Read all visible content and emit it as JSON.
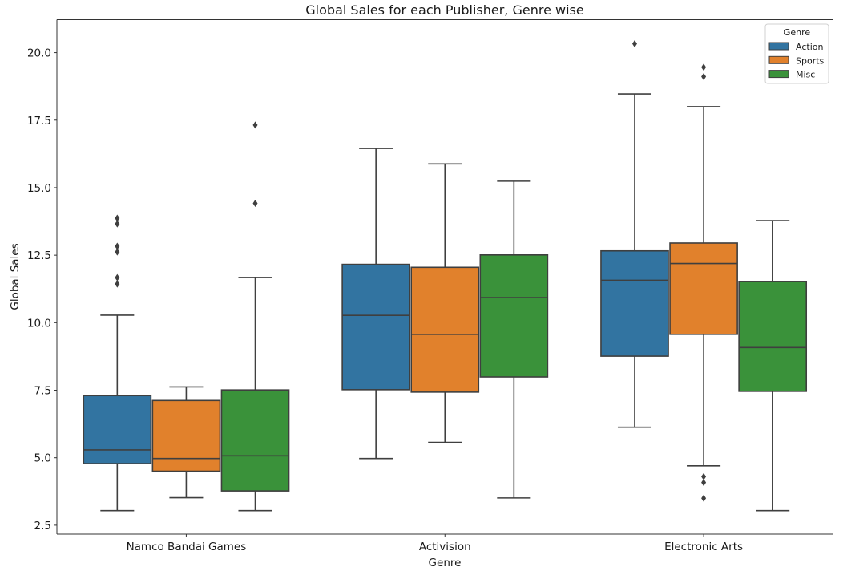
{
  "chart_data": {
    "type": "boxplot",
    "title": "Global Sales for each Publisher, Genre wise",
    "xlabel": "Genre",
    "ylabel": "Global Sales",
    "ylim": [
      2.17,
      21.22
    ],
    "yticks": [
      2.5,
      5.0,
      7.5,
      10.0,
      12.5,
      15.0,
      17.5,
      20.0
    ],
    "ytick_labels": [
      "2.5",
      "5.0",
      "7.5",
      "10.0",
      "12.5",
      "15.0",
      "17.5",
      "20.0"
    ],
    "categories": [
      "Namco Bandai Games",
      "Activision",
      "Electronic Arts"
    ],
    "grid": false,
    "legend": {
      "title": "Genre",
      "placement": "top-right",
      "entries": [
        "Action",
        "Sports",
        "Misc"
      ]
    },
    "series": [
      {
        "name": "Action",
        "color": "#3274a1",
        "boxes": [
          {
            "whislo": 3.04,
            "q1": 4.78,
            "med": 5.29,
            "q3": 7.3,
            "whishi": 10.28,
            "fliers": [
              13.87,
              13.66,
              12.83,
              12.62,
              11.67,
              11.43
            ]
          },
          {
            "whislo": 4.97,
            "q1": 7.52,
            "med": 10.27,
            "q3": 12.16,
            "whishi": 16.45,
            "fliers": []
          },
          {
            "whislo": 6.13,
            "q1": 8.76,
            "med": 11.57,
            "q3": 12.66,
            "whishi": 18.47,
            "fliers": [
              20.33
            ]
          }
        ]
      },
      {
        "name": "Sports",
        "color": "#e1812c",
        "boxes": [
          {
            "whislo": 3.52,
            "q1": 4.5,
            "med": 4.97,
            "q3": 7.12,
            "whishi": 7.62,
            "fliers": []
          },
          {
            "whislo": 5.57,
            "q1": 7.43,
            "med": 9.57,
            "q3": 12.05,
            "whishi": 15.88,
            "fliers": []
          },
          {
            "whislo": 4.7,
            "q1": 9.57,
            "med": 12.19,
            "q3": 12.95,
            "whishi": 18.0,
            "fliers": [
              19.46,
              19.11,
              4.3,
              4.08,
              3.5
            ]
          }
        ]
      },
      {
        "name": "Misc",
        "color": "#3a923a",
        "boxes": [
          {
            "whislo": 3.04,
            "q1": 3.77,
            "med": 5.07,
            "q3": 7.51,
            "whishi": 11.67,
            "fliers": [
              17.32,
              14.42
            ]
          },
          {
            "whislo": 3.51,
            "q1": 7.99,
            "med": 10.93,
            "q3": 12.51,
            "whishi": 15.24,
            "fliers": []
          },
          {
            "whislo": 3.04,
            "q1": 7.46,
            "med": 9.08,
            "q3": 11.52,
            "whishi": 13.78,
            "fliers": []
          }
        ]
      }
    ],
    "line_color": "#3f3f3f"
  }
}
